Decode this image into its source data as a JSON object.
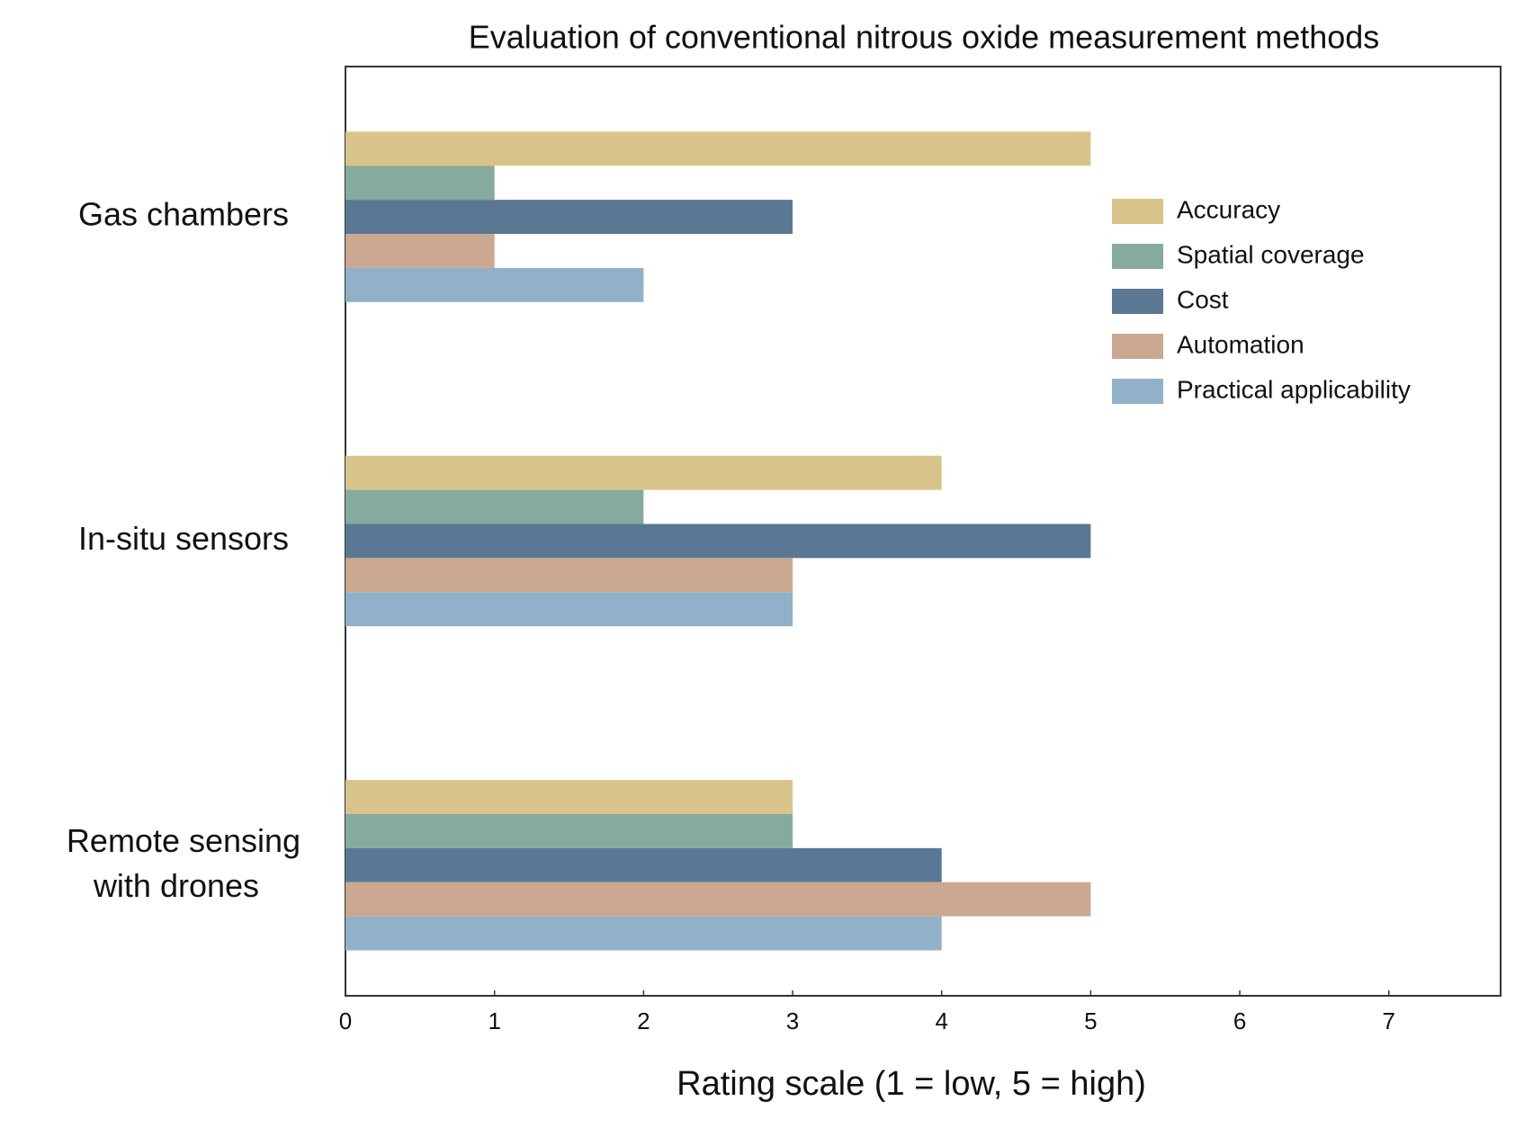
{
  "chart_data": {
    "type": "hbar",
    "title": "Evaluation of conventional nitrous oxide measurement methods",
    "x_label": "Rating scale (1 = low, 5 = high)",
    "categories": [
      "Gas chambers",
      "In-situ sensors",
      "Remote sensing with drones"
    ],
    "series": [
      {
        "name": "Accuracy",
        "color": "#d8c48b",
        "values": [
          5,
          4,
          3
        ]
      },
      {
        "name": "Spatial coverage",
        "color": "#86ab9c",
        "values": [
          1,
          2,
          3
        ]
      },
      {
        "name": "Cost",
        "color": "#5a7894",
        "values": [
          3,
          5,
          4
        ]
      },
      {
        "name": "Automation",
        "color": "#cba891",
        "values": [
          1,
          3,
          5
        ]
      },
      {
        "name": "Practical applicability",
        "color": "#91b1c9",
        "values": [
          2,
          3,
          4
        ]
      }
    ],
    "xlim": [
      0,
      7.75
    ],
    "xticks": [
      0,
      1,
      2,
      3,
      4,
      5,
      6,
      7
    ],
    "legend": "upper right",
    "grid": false
  }
}
